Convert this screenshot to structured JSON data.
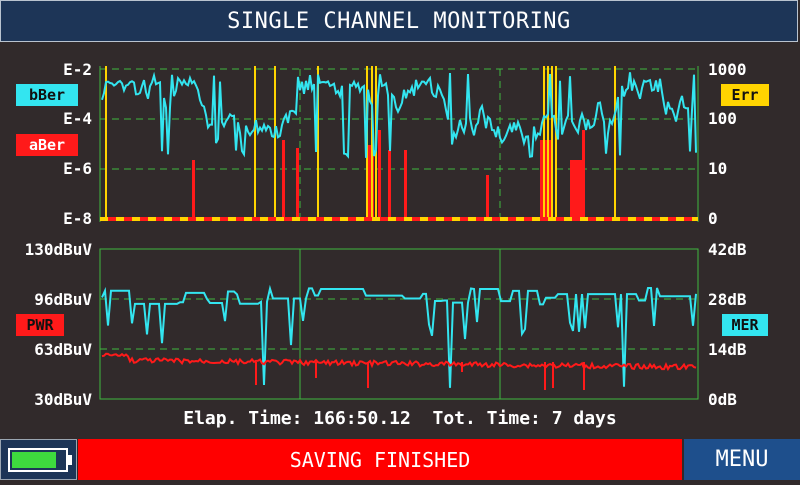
{
  "title": "SINGLE CHANNEL MONITORING",
  "top_chart": {
    "left_ticks": [
      "E-2",
      "E-4",
      "E-6",
      "E-8"
    ],
    "right_ticks": [
      "1000",
      "100",
      "10",
      "0"
    ],
    "bber_label": "bBer",
    "aber_label": "aBer",
    "err_label": "Err",
    "colors": {
      "bber": "#33e5f0",
      "aber": "#ff1a1a",
      "err": "#ffd400",
      "grid": "#3fb83f"
    }
  },
  "bottom_chart": {
    "left_ticks": [
      "130dBuV",
      "96dBuV",
      "63dBuV",
      "30dBuV"
    ],
    "right_ticks": [
      "42dB",
      "28dB",
      "14dB",
      "0dB"
    ],
    "pwr_label": "PWR",
    "mer_label": "MER",
    "colors": {
      "mer": "#33e5f0",
      "pwr": "#ff1a1a",
      "grid": "#3fb83f"
    }
  },
  "elapsed": "Elap. Time: 166:50.12  Tot. Time: 7 days",
  "battery": {
    "icon": "battery-icon",
    "level": 0.85,
    "color": "#3ed93e"
  },
  "status": "SAVING FINISHED",
  "menu": "MENU"
}
